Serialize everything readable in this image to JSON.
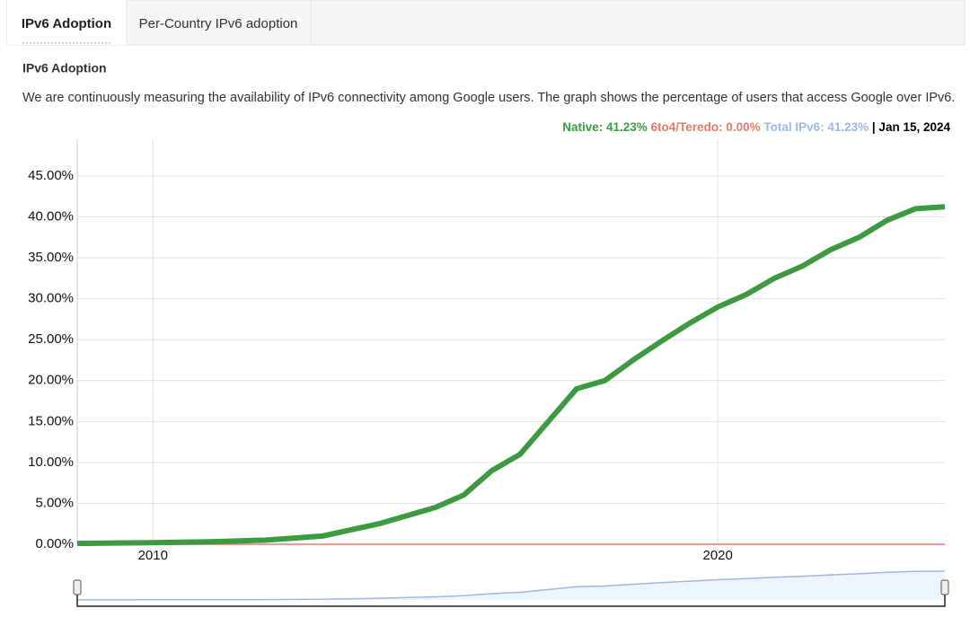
{
  "tabs": [
    "IPv6 Adoption",
    "Per-Country IPv6 adoption"
  ],
  "heading": "IPv6 Adoption",
  "description": "We are continuously measuring the availability of IPv6 connectivity among Google users. The graph shows the percentage of users that access Google over IPv6.",
  "chart_data": {
    "type": "line",
    "readout": [
      {
        "text": "Native: 41.23%",
        "color": "#3d9a40"
      },
      {
        "text": "6to4/Teredo: 0.00%",
        "color": "#e07b6f"
      },
      {
        "text": "Total IPv6: 41.23%",
        "color": "#9fb8e0"
      },
      {
        "text": "| Jan 15, 2024",
        "color": "#000000"
      }
    ],
    "x": [
      2008.66,
      2010,
      2011,
      2012,
      2013,
      2014,
      2015,
      2015.5,
      2016,
      2016.5,
      2017,
      2017.5,
      2018,
      2018.5,
      2019,
      2019.5,
      2020,
      2020.5,
      2021,
      2021.5,
      2022,
      2022.5,
      2023,
      2023.5,
      2024.02
    ],
    "series": [
      {
        "color": "#3d9a40",
        "values": [
          0.1,
          0.2,
          0.3,
          0.5,
          1.0,
          2.5,
          4.5,
          6,
          9,
          11,
          15,
          19,
          20,
          22.5,
          24.8,
          27,
          29,
          30.5,
          32.5,
          34,
          36,
          37.5,
          39.6,
          41,
          41.23
        ]
      },
      {
        "color": "#e07b6f",
        "values": [
          0,
          0,
          0,
          0,
          0,
          0,
          0,
          0,
          0,
          0,
          0,
          0,
          0,
          0,
          0,
          0,
          0,
          0,
          0,
          0,
          0,
          0,
          0,
          0,
          0
        ]
      }
    ],
    "xlim": [
      2008.66,
      2024.02
    ],
    "xticks": [
      2010,
      2020
    ],
    "ylim": [
      0,
      49.5
    ],
    "yticks": [
      {
        "value": 0,
        "label": "0.00%"
      },
      {
        "value": 5,
        "label": "5.00%"
      },
      {
        "value": 10,
        "label": "10.00%"
      },
      {
        "value": 15,
        "label": "15.00%"
      },
      {
        "value": 20,
        "label": "20.00%"
      },
      {
        "value": 25,
        "label": "25.00%"
      },
      {
        "value": 30,
        "label": "30.00%"
      },
      {
        "value": 35,
        "label": "35.00%"
      },
      {
        "value": 40,
        "label": "40.00%"
      },
      {
        "value": 45,
        "label": "45.00%"
      }
    ],
    "grid": true
  }
}
